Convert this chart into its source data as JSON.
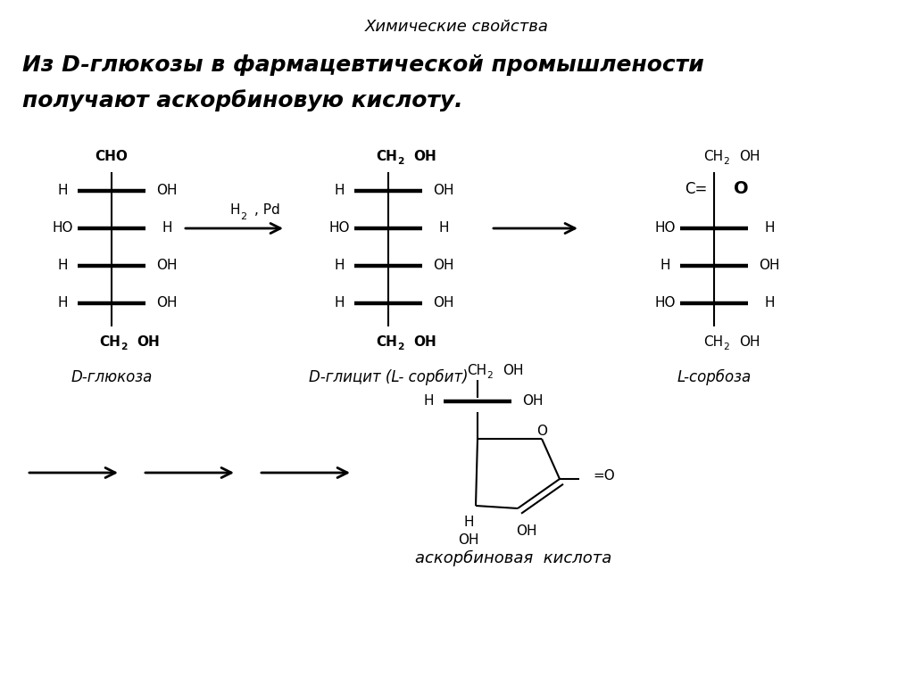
{
  "title_top": "Химические свойства",
  "title_main_line1": "Из D-глюкозы в фармацевтической промышлености",
  "title_main_line2": "получают аскорбиновую кислоту.",
  "bg_color": "#ffffff",
  "text_color": "#000000",
  "label1": "D-глюкоза",
  "label2": "D-глицит (L- сорбит)",
  "label3": "L-сорбоза",
  "label4": "аскорбиновая  кислота"
}
